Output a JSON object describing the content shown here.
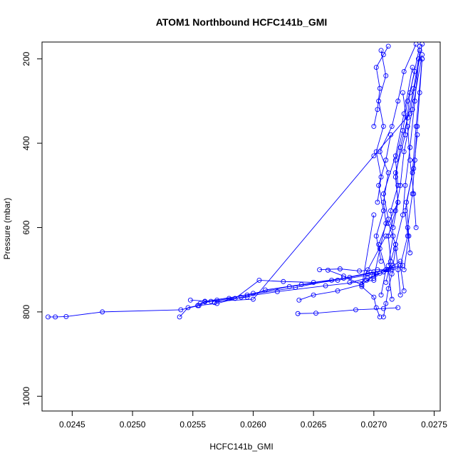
{
  "chart_data": {
    "type": "line",
    "title": "ATOM1 Northbound HCFC141b_GMI",
    "xlabel": "HCFC141b_GMI",
    "ylabel": "Pressure (mbar)",
    "xlim": [
      0.02425,
      0.02755
    ],
    "ylim": [
      1035,
      160
    ],
    "y_reversed": true,
    "x_ticks": [
      "0.0245",
      "0.0250",
      "0.0255",
      "0.0260",
      "0.0265",
      "0.0270",
      "0.0275"
    ],
    "x_tick_values": [
      0.0245,
      0.025,
      0.0255,
      0.026,
      0.0265,
      0.027,
      0.0275
    ],
    "y_ticks": [
      "200",
      "400",
      "600",
      "800",
      "1000"
    ],
    "y_tick_values": [
      200,
      400,
      600,
      800,
      1000
    ],
    "color": "#0000ff",
    "marker": "open-circle",
    "grid": false,
    "series": [
      {
        "x": [
          0.0243,
          0.02436,
          0.02445,
          0.02475,
          0.0254,
          0.02555,
          0.0256
        ],
        "y": [
          812,
          812,
          811,
          800,
          795,
          785,
          775
        ]
      },
      {
        "x": [
          0.02539,
          0.02546,
          0.02554,
          0.0257,
          0.0259,
          0.0262,
          0.0266,
          0.027
        ],
        "y": [
          812,
          790,
          785,
          780,
          765,
          752,
          738,
          725
        ]
      },
      {
        "x": [
          0.02548,
          0.02565,
          0.0258,
          0.026,
          0.0263,
          0.0267,
          0.02705,
          0.02715
        ],
        "y": [
          772,
          775,
          768,
          756,
          740,
          725,
          708,
          700
        ]
      },
      {
        "x": [
          0.02556,
          0.0257,
          0.02595,
          0.0261,
          0.0264,
          0.0268,
          0.0271
        ],
        "y": [
          780,
          772,
          765,
          748,
          735,
          718,
          700
        ]
      },
      {
        "x": [
          0.0256,
          0.02595,
          0.02635,
          0.02665,
          0.02695,
          0.02712
        ],
        "y": [
          775,
          760,
          742,
          725,
          710,
          700
        ]
      },
      {
        "x": [
          0.02568,
          0.02585,
          0.02605,
          0.02625,
          0.0265,
          0.02675,
          0.027
        ],
        "y": [
          778,
          768,
          725,
          728,
          730,
          720,
          705
        ]
      },
      {
        "x": [
          0.0256,
          0.026,
          0.027,
          0.0273,
          0.0274
        ],
        "y": [
          776,
          770,
          430,
          330,
          165
        ]
      },
      {
        "x": [
          0.02637,
          0.02652,
          0.02685,
          0.02708,
          0.0272
        ],
        "y": [
          804,
          803,
          795,
          792,
          790
        ]
      },
      {
        "x": [
          0.02655,
          0.02672,
          0.02688,
          0.02703,
          0.02712
        ],
        "y": [
          700,
          698,
          703,
          700,
          700
        ]
      },
      {
        "x": [
          0.02638,
          0.0265,
          0.0267,
          0.0269,
          0.02702
        ],
        "y": [
          772,
          760,
          750,
          735,
          710
        ]
      },
      {
        "x": [
          0.02662,
          0.02675,
          0.0269,
          0.02695,
          0.0271
        ],
        "y": [
          701,
          715,
          736,
          700,
          620
        ]
      },
      {
        "x": [
          0.02705,
          0.02702,
          0.027,
          0.0269,
          0.027
        ],
        "y": [
          812,
          790,
          765,
          740,
          570
        ]
      },
      {
        "x": [
          0.02708,
          0.0271,
          0.02712,
          0.02715,
          0.02718
        ],
        "y": [
          812,
          780,
          745,
          710,
          650
        ]
      },
      {
        "x": [
          0.027,
          0.02705,
          0.0271,
          0.02708,
          0.02712,
          0.02705,
          0.02715,
          0.0272,
          0.02725,
          0.02735
        ],
        "y": [
          720,
          650,
          590,
          540,
          470,
          420,
          360,
          300,
          230,
          165
        ]
      },
      {
        "x": [
          0.02706,
          0.0271,
          0.02704,
          0.02712,
          0.02708,
          0.02718,
          0.02725,
          0.02732
        ],
        "y": [
          760,
          700,
          640,
          580,
          520,
          430,
          330,
          220
        ]
      },
      {
        "x": [
          0.02715,
          0.02712,
          0.02718,
          0.02712,
          0.0272,
          0.02718,
          0.02726,
          0.0273,
          0.02738
        ],
        "y": [
          770,
          700,
          640,
          590,
          540,
          470,
          380,
          280,
          170
        ]
      },
      {
        "x": [
          0.0271,
          0.02714,
          0.02712,
          0.02718,
          0.02722,
          0.02725,
          0.02732,
          0.0274
        ],
        "y": [
          730,
          680,
          620,
          560,
          500,
          420,
          320,
          190
        ]
      },
      {
        "x": [
          0.02722,
          0.0272,
          0.02718,
          0.02724,
          0.02726,
          0.0273,
          0.02734,
          0.02738
        ],
        "y": [
          760,
          700,
          640,
          570,
          500,
          410,
          300,
          180
        ]
      },
      {
        "x": [
          0.02725,
          0.02722,
          0.02728,
          0.02726,
          0.02732,
          0.02735,
          0.0274
        ],
        "y": [
          750,
          690,
          620,
          560,
          470,
          360,
          200
        ]
      },
      {
        "x": [
          0.0273,
          0.02728,
          0.02732,
          0.02734,
          0.02736,
          0.02738,
          0.0274
        ],
        "y": [
          660,
          600,
          520,
          440,
          360,
          280,
          200
        ]
      },
      {
        "x": [
          0.02703,
          0.02706,
          0.02702,
          0.02708,
          0.02704,
          0.0271,
          0.02706
        ],
        "y": [
          540,
          480,
          420,
          360,
          300,
          240,
          180
        ]
      },
      {
        "x": [
          0.027,
          0.02703,
          0.02705,
          0.02702,
          0.02708,
          0.02712
        ],
        "y": [
          360,
          320,
          270,
          220,
          190,
          170
        ]
      },
      {
        "x": [
          0.02706,
          0.02702,
          0.02708,
          0.02704,
          0.0271,
          0.02714
        ],
        "y": [
          680,
          620,
          560,
          500,
          440,
          380
        ]
      },
      {
        "x": [
          0.02712,
          0.02716,
          0.02714,
          0.0272,
          0.02718,
          0.02724,
          0.02728,
          0.02734
        ],
        "y": [
          690,
          620,
          560,
          500,
          440,
          370,
          300,
          230
        ]
      },
      {
        "x": [
          0.02716,
          0.0272,
          0.02718,
          0.02722,
          0.02728,
          0.02733,
          0.02737
        ],
        "y": [
          600,
          540,
          480,
          410,
          340,
          270,
          200
        ]
      },
      {
        "x": [
          0.02735,
          0.02733,
          0.0273,
          0.02728,
          0.02724
        ],
        "y": [
          600,
          520,
          440,
          360,
          280
        ]
      },
      {
        "x": [
          0.02725,
          0.02729,
          0.02727,
          0.02733,
          0.02736
        ],
        "y": [
          700,
          620,
          540,
          460,
          380
        ]
      },
      {
        "x": [
          0.0268,
          0.02695,
          0.02708,
          0.02716,
          0.02722
        ],
        "y": [
          730,
          720,
          705,
          690,
          680
        ]
      },
      {
        "x": [
          0.02694,
          0.027,
          0.02708,
          0.02716,
          0.02724
        ],
        "y": [
          725,
          715,
          705,
          695,
          690
        ]
      }
    ]
  }
}
